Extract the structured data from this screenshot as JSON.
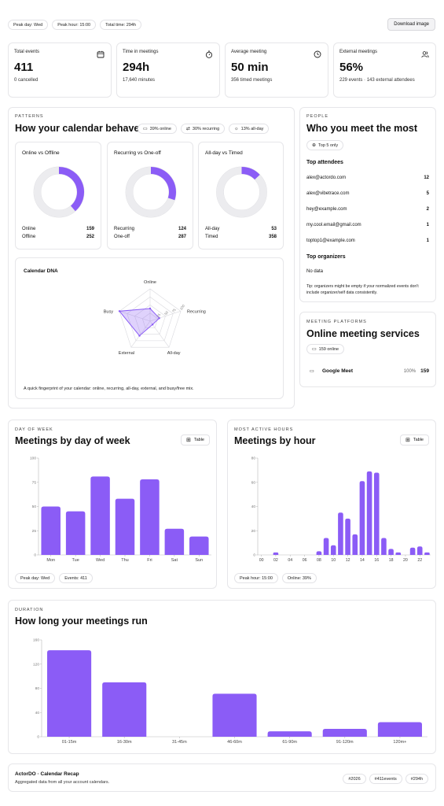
{
  "top_bar": {
    "pills": [
      "Peak day: Wed",
      "Peak hour: 15:00",
      "Total time: 294h"
    ],
    "download_label": "Download image"
  },
  "stats": [
    {
      "label": "Total events",
      "value": "411",
      "sub": "0 cancelled",
      "icon": "calendar-icon"
    },
    {
      "label": "Time in meetings",
      "value": "294h",
      "sub": "17,640 minutes",
      "icon": "stopwatch-icon"
    },
    {
      "label": "Average meeting",
      "value": "50 min",
      "sub": "356 timed meetings",
      "icon": "clock-icon"
    },
    {
      "label": "External meetings",
      "value": "56%",
      "sub": "229 events · 143 external attendees",
      "icon": "users-icon"
    }
  ],
  "patterns": {
    "kicker": "PATTERNS",
    "title": "How your calendar behaves",
    "pills": [
      "39% online",
      "30% recurring",
      "13% all-day"
    ],
    "donuts": [
      {
        "title": "Online vs Offline",
        "fraction": 0.387,
        "rows": [
          {
            "label": "Online",
            "value": "159"
          },
          {
            "label": "Offline",
            "value": "252"
          }
        ]
      },
      {
        "title": "Recurring vs One-off",
        "fraction": 0.302,
        "rows": [
          {
            "label": "Recurring",
            "value": "124"
          },
          {
            "label": "One-off",
            "value": "287"
          }
        ]
      },
      {
        "title": "All-day vs Timed",
        "fraction": 0.129,
        "rows": [
          {
            "label": "All-day",
            "value": "53"
          },
          {
            "label": "Timed",
            "value": "358"
          }
        ]
      }
    ],
    "dna": {
      "title": "Calendar DNA",
      "axes": [
        "Online",
        "Recurring",
        "All-day",
        "External",
        "Busy"
      ],
      "values": [
        0.39,
        0.3,
        0.13,
        0.56,
        1.0
      ],
      "ticks": [
        "25",
        "50",
        "75",
        "100"
      ],
      "caption": "A quick fingerprint of your calendar: online, recurring, all-day, external, and busy/free mix."
    }
  },
  "people": {
    "kicker": "PEOPLE",
    "title": "Who you meet the most",
    "filter_label": "Top 5 only",
    "attendees_heading": "Top attendees",
    "attendees": [
      {
        "email": "alex@actordo.com",
        "count": "12"
      },
      {
        "email": "alex@vibetrace.com",
        "count": "5"
      },
      {
        "email": "hey@example.com",
        "count": "2"
      },
      {
        "email": "my.cool.email@gmail.com",
        "count": "1"
      },
      {
        "email": "toptop1@example.com",
        "count": "1"
      }
    ],
    "organizers_heading": "Top organizers",
    "organizers_empty": "No data",
    "tip": "Tip: organizers might be empty if your normalized events don't include organizer/self data consistently."
  },
  "platforms": {
    "kicker": "MEETING PLATFORMS",
    "title": "Online meeting services",
    "pill": "159 online",
    "items": [
      {
        "name": "Google Meet",
        "percent": "100%",
        "count": "159"
      }
    ]
  },
  "day_of_week": {
    "kicker": "DAY OF WEEK",
    "title": "Meetings by day of week",
    "table_label": "Table",
    "pills": [
      "Peak day: Wed",
      "Events: 411"
    ]
  },
  "hours": {
    "kicker": "MOST ACTIVE HOURS",
    "title": "Meetings by hour",
    "table_label": "Table",
    "pills": [
      "Peak hour: 15:00",
      "Online: 39%"
    ]
  },
  "duration": {
    "kicker": "DURATION",
    "title": "How long your meetings run"
  },
  "footer": {
    "title": "ActorDO · Calendar Recap",
    "subtitle": "Aggregated data from all your account calendars.",
    "tags": [
      "#2026",
      "#411events",
      "#294h"
    ]
  },
  "colors": {
    "accent": "#8b5cf6",
    "track": "#ececef",
    "grid": "#d9d9de"
  },
  "chart_data": [
    {
      "type": "bar",
      "categories": [
        "Mon",
        "Tue",
        "Wed",
        "Thu",
        "Fri",
        "Sat",
        "Sun"
      ],
      "values": [
        50,
        45,
        81,
        58,
        78,
        27,
        19
      ],
      "ylim": [
        0,
        100
      ],
      "yticks": [
        0,
        25,
        50,
        75,
        100
      ]
    },
    {
      "type": "bar",
      "categories": [
        "00",
        "01",
        "02",
        "03",
        "04",
        "05",
        "06",
        "07",
        "08",
        "09",
        "10",
        "11",
        "12",
        "13",
        "14",
        "15",
        "16",
        "17",
        "18",
        "19",
        "20",
        "21",
        "22",
        "23"
      ],
      "xtick_labels": [
        "00",
        "02",
        "04",
        "06",
        "08",
        "10",
        "12",
        "14",
        "16",
        "18",
        "20",
        "22"
      ],
      "values": [
        0,
        0,
        2,
        0,
        0,
        0,
        0,
        0,
        3,
        14,
        8,
        35,
        30,
        17,
        61,
        69,
        68,
        14,
        5,
        2,
        0,
        6,
        7,
        2
      ],
      "ylim": [
        0,
        80
      ],
      "yticks": [
        0,
        20,
        40,
        60,
        80
      ]
    },
    {
      "type": "bar",
      "categories": [
        "01-15m",
        "16-30m",
        "31-45m",
        "46-60m",
        "61-90m",
        "91-120m",
        "120m+"
      ],
      "values": [
        143,
        90,
        0,
        71,
        9,
        13,
        24
      ],
      "ylim": [
        0,
        160
      ],
      "yticks": [
        0,
        40,
        80,
        120,
        160
      ]
    }
  ]
}
